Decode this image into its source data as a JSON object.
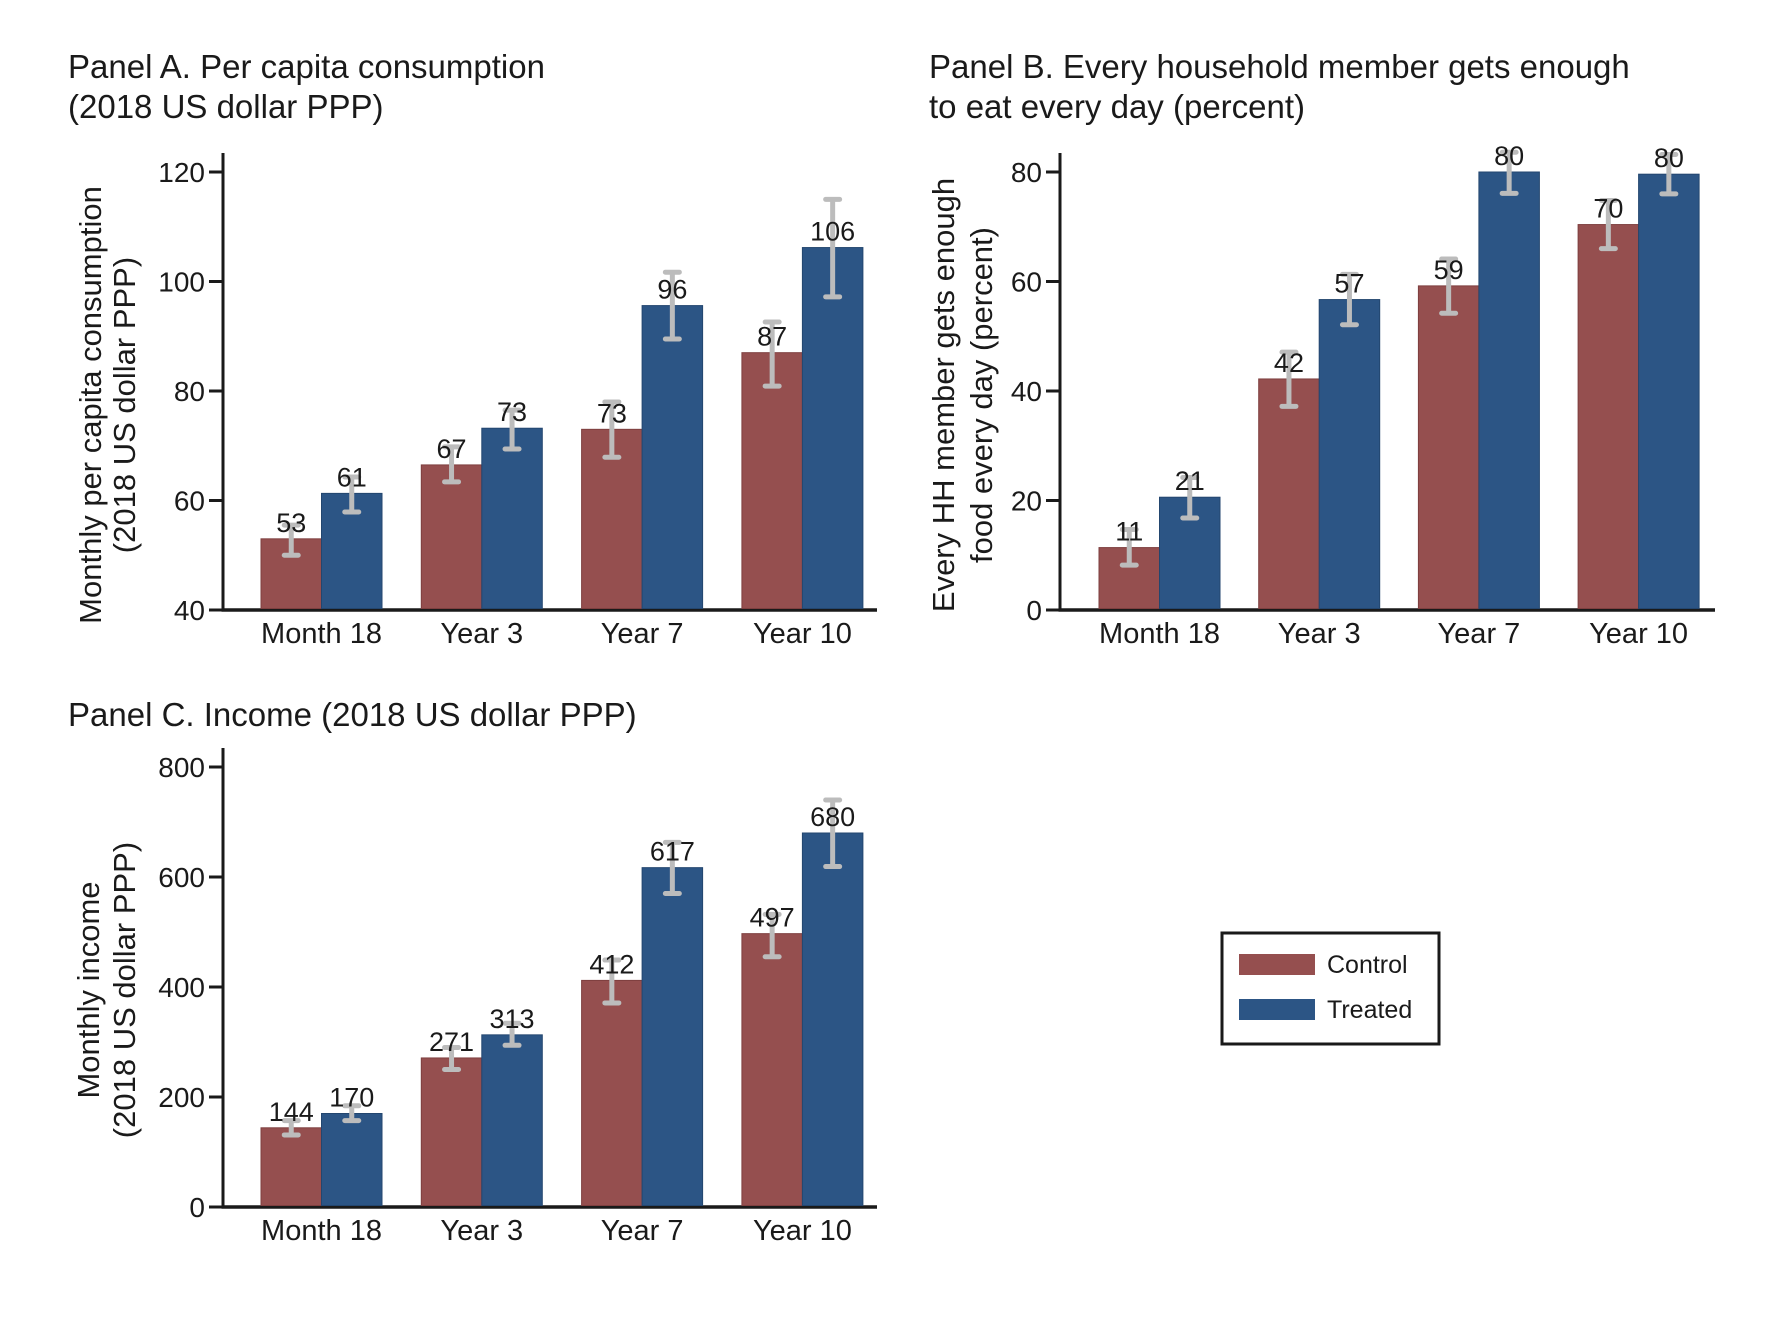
{
  "colors": {
    "control": "#954f4f",
    "treated": "#2c5585",
    "errorbar": "#bcbcbc",
    "axis": "#1a1a1a"
  },
  "legend": {
    "placement": "lower-right",
    "entries": [
      {
        "name": "Control",
        "color": "#954f4f"
      },
      {
        "name": "Treated",
        "color": "#2c5585"
      }
    ]
  },
  "chart_data": [
    {
      "id": "panelA",
      "type": "bar",
      "title_lines": [
        "Panel A. Per capita consumption",
        "(2018 US dollar PPP)"
      ],
      "ylabel_lines": [
        "Monthly per capita consumption",
        "(2018 US dollar PPP)"
      ],
      "xlabel": "",
      "categories": [
        "Month 18",
        "Year 3",
        "Year 7",
        "Year 10"
      ],
      "ylim": [
        40,
        120
      ],
      "yticks": [
        40,
        60,
        80,
        100,
        120
      ],
      "grid": false,
      "series": [
        {
          "name": "Control",
          "values": [
            53,
            66.5,
            73,
            87
          ],
          "labels": [
            "53",
            "67",
            "73",
            "87"
          ],
          "ci_low": [
            50.0,
            63.4,
            67.9,
            80.9
          ],
          "ci_high": [
            55.5,
            69.8,
            78.0,
            92.6
          ]
        },
        {
          "name": "Treated",
          "values": [
            61.3,
            73.2,
            95.6,
            106.2
          ],
          "labels": [
            "61",
            "73",
            "96",
            "106"
          ],
          "ci_low": [
            57.9,
            69.4,
            89.5,
            97.2
          ],
          "ci_high": [
            64.3,
            76.5,
            101.7,
            115.0
          ]
        }
      ]
    },
    {
      "id": "panelB",
      "type": "bar",
      "title_lines": [
        "Panel B. Every household member gets enough",
        "to eat every day (percent)"
      ],
      "ylabel_lines": [
        "Every HH member gets enough",
        "food every day (percent)"
      ],
      "xlabel": "",
      "categories": [
        "Month 18",
        "Year 3",
        "Year 7",
        "Year 10"
      ],
      "ylim": [
        0,
        87
      ],
      "yticks": [
        0,
        20,
        40,
        60,
        80
      ],
      "grid": false,
      "series": [
        {
          "name": "Control",
          "values": [
            11.4,
            42.2,
            59.2,
            70.4
          ],
          "labels": [
            "11",
            "42",
            "59",
            "70"
          ],
          "ci_low": [
            8.2,
            37.2,
            54.2,
            66.0
          ],
          "ci_high": [
            14.7,
            47.1,
            64.1,
            74.8
          ]
        },
        {
          "name": "Treated",
          "values": [
            20.6,
            56.7,
            80.0,
            79.6
          ],
          "labels": [
            "21",
            "57",
            "80",
            "80"
          ],
          "ci_low": [
            16.8,
            52.1,
            76.1,
            76.0
          ],
          "ci_high": [
            24.2,
            61.3,
            83.6,
            83.2
          ]
        }
      ]
    },
    {
      "id": "panelC",
      "type": "bar",
      "title_lines": [
        "Panel C. Income (2018 US dollar PPP)"
      ],
      "ylabel_lines": [
        "Monthly income",
        "(2018 US dollar PPP)"
      ],
      "xlabel": "",
      "categories": [
        "Month 18",
        "Year 3",
        "Year 7",
        "Year 10"
      ],
      "ylim": [
        0,
        840
      ],
      "yticks": [
        0,
        200,
        400,
        600,
        800
      ],
      "grid": false,
      "series": [
        {
          "name": "Control",
          "values": [
            144,
            271,
            412,
            497
          ],
          "labels": [
            "144",
            "271",
            "412",
            "497"
          ],
          "ci_low": [
            131,
            250,
            371,
            455
          ],
          "ci_high": [
            157,
            290,
            449,
            532
          ]
        },
        {
          "name": "Treated",
          "values": [
            170,
            313,
            617,
            680
          ],
          "labels": [
            "170",
            "313",
            "617",
            "680"
          ],
          "ci_low": [
            157,
            294,
            570,
            619
          ],
          "ci_high": [
            184,
            334,
            663,
            740
          ]
        }
      ]
    }
  ]
}
